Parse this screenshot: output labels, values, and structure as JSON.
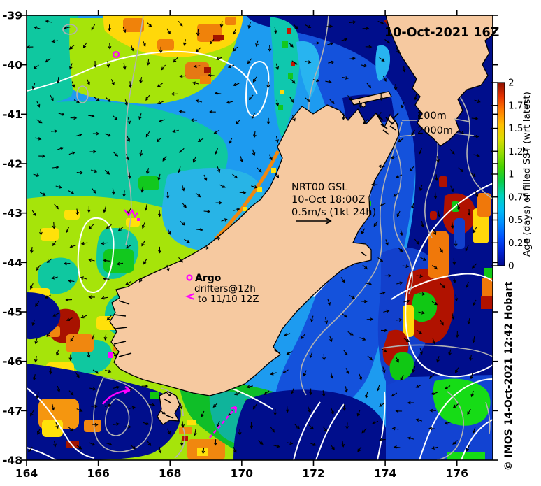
{
  "figure": {
    "timestamp": "10-Oct-2021 16Z"
  },
  "annotations": {
    "gsl": {
      "lines": [
        "NRT00 GSL",
        "10-Oct 18:00Z",
        "0.5m/s (1kt 24h)"
      ]
    },
    "argo": {
      "lines": [
        "Argo",
        "drifters@12h",
        "to 11/10 12Z"
      ]
    },
    "depths": {
      "d200": "200m",
      "d2000": "2000m"
    }
  },
  "axes": {
    "x_ticks": [
      {
        "label": "164",
        "value": 164
      },
      {
        "label": "166",
        "value": 166
      },
      {
        "label": "168",
        "value": 168
      },
      {
        "label": "170",
        "value": 170
      },
      {
        "label": "172",
        "value": 172
      },
      {
        "label": "174",
        "value": 174
      },
      {
        "label": "176",
        "value": 176
      }
    ],
    "y_ticks": [
      {
        "label": "-39",
        "value": -39
      },
      {
        "label": "-40",
        "value": -40
      },
      {
        "label": "-41",
        "value": -41
      },
      {
        "label": "-42",
        "value": -42
      },
      {
        "label": "-43",
        "value": -43
      },
      {
        "label": "-44",
        "value": -44
      },
      {
        "label": "-45",
        "value": -45
      },
      {
        "label": "-46",
        "value": -46
      },
      {
        "label": "-47",
        "value": -47
      },
      {
        "label": "-48",
        "value": -48
      }
    ]
  },
  "colorbar": {
    "title": "Age (days) of filled SST (wrt latest)",
    "min": 0,
    "max": 2,
    "ticks": [
      "0",
      "0.25",
      "0.5",
      "0.75",
      "1",
      "1.25",
      "1.5",
      "1.75",
      "2"
    ],
    "gradient": [
      "#00078C",
      "#0022D2",
      "#0050FF",
      "#008CFF",
      "#00BEF5",
      "#00D2B9",
      "#0ACC46",
      "#46D200",
      "#96DC00",
      "#DCDC00",
      "#FFBE00",
      "#FF7D00",
      "#E63200",
      "#8C0F00"
    ]
  },
  "attribution": {
    "text": "© IMOS 14-Oct-2021 12:42 Hobart"
  },
  "colors": {
    "land": "#F6C9A0",
    "ocean_base": "#1D9BF0",
    "contour_white": "#FFFFFF",
    "contour_gray": "#B2B2B2",
    "drifter_magenta": "#FF00FF",
    "vector_black": "#000000"
  }
}
